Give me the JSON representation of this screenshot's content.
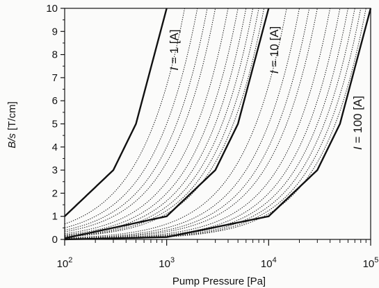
{
  "chart_data": {
    "type": "line",
    "title": "",
    "xlabel": "Pump Pressure [Pa]",
    "ylabel_italic": "B/s",
    "ylabel_unit": " [T/cm]",
    "x_scale": "log",
    "xlim": [
      100,
      100000
    ],
    "ylim": [
      0,
      10
    ],
    "x_ticks": [
      {
        "value": 100,
        "base": "10",
        "exp": "2"
      },
      {
        "value": 1000,
        "base": "10",
        "exp": "3"
      },
      {
        "value": 10000,
        "base": "10",
        "exp": "4"
      },
      {
        "value": 100000,
        "base": "10",
        "exp": "5"
      }
    ],
    "y_ticks": [
      0,
      1,
      2,
      3,
      4,
      5,
      6,
      7,
      8,
      9,
      10
    ],
    "grid": false,
    "solid_curves": [
      {
        "name": "I = 1 [A]",
        "x": [
          100,
          300,
          500,
          1000
        ],
        "y": [
          1.0,
          3.0,
          5.0,
          10.0
        ]
      },
      {
        "name": "I = 10 [A]",
        "x": [
          100,
          1000,
          3000,
          5000,
          10000
        ],
        "y": [
          0.05,
          1.0,
          3.0,
          5.0,
          10.0
        ]
      },
      {
        "name": "I = 100 [A]",
        "x": [
          100,
          1000,
          10000,
          30000,
          50000,
          100000
        ],
        "y": [
          0.0,
          0.1,
          1.0,
          3.0,
          5.0,
          10.0
        ]
      }
    ],
    "dotted_curves": [
      {
        "x": [
          100,
          1500
        ],
        "y": [
          0.67,
          10
        ]
      },
      {
        "x": [
          100,
          2000
        ],
        "y": [
          0.5,
          10
        ]
      },
      {
        "x": [
          100,
          2500
        ],
        "y": [
          0.4,
          10
        ]
      },
      {
        "x": [
          100,
          3000
        ],
        "y": [
          0.33,
          10
        ]
      },
      {
        "x": [
          100,
          4000
        ],
        "y": [
          0.25,
          10
        ]
      },
      {
        "x": [
          100,
          5000
        ],
        "y": [
          0.2,
          10
        ]
      },
      {
        "x": [
          100,
          6000
        ],
        "y": [
          0.17,
          10
        ]
      },
      {
        "x": [
          100,
          7000
        ],
        "y": [
          0.14,
          10
        ]
      },
      {
        "x": [
          100,
          8000
        ],
        "y": [
          0.125,
          10
        ]
      },
      {
        "x": [
          100,
          9000
        ],
        "y": [
          0.11,
          10
        ]
      },
      {
        "x": [
          100,
          15000
        ],
        "y": [
          0.067,
          10
        ]
      },
      {
        "x": [
          100,
          20000
        ],
        "y": [
          0.05,
          10
        ]
      },
      {
        "x": [
          100,
          25000
        ],
        "y": [
          0.04,
          10
        ]
      },
      {
        "x": [
          100,
          30000
        ],
        "y": [
          0.033,
          10
        ]
      },
      {
        "x": [
          100,
          40000
        ],
        "y": [
          0.025,
          10
        ]
      },
      {
        "x": [
          100,
          50000
        ],
        "y": [
          0.02,
          10
        ]
      },
      {
        "x": [
          100,
          60000
        ],
        "y": [
          0.017,
          10
        ]
      },
      {
        "x": [
          100,
          70000
        ],
        "y": [
          0.014,
          10
        ]
      },
      {
        "x": [
          100,
          80000
        ],
        "y": [
          0.0125,
          10
        ]
      },
      {
        "x": [
          100,
          90000
        ],
        "y": [
          0.011,
          10
        ]
      }
    ],
    "curve_labels": [
      {
        "italic": "I",
        "rest": " = 1 [A]"
      },
      {
        "italic": "I",
        "rest": " = 10 [A]"
      },
      {
        "italic": "I",
        "rest": " = 100 [A]"
      }
    ],
    "colors": {
      "ink": "#111111",
      "background": "#fbfbfa"
    }
  }
}
